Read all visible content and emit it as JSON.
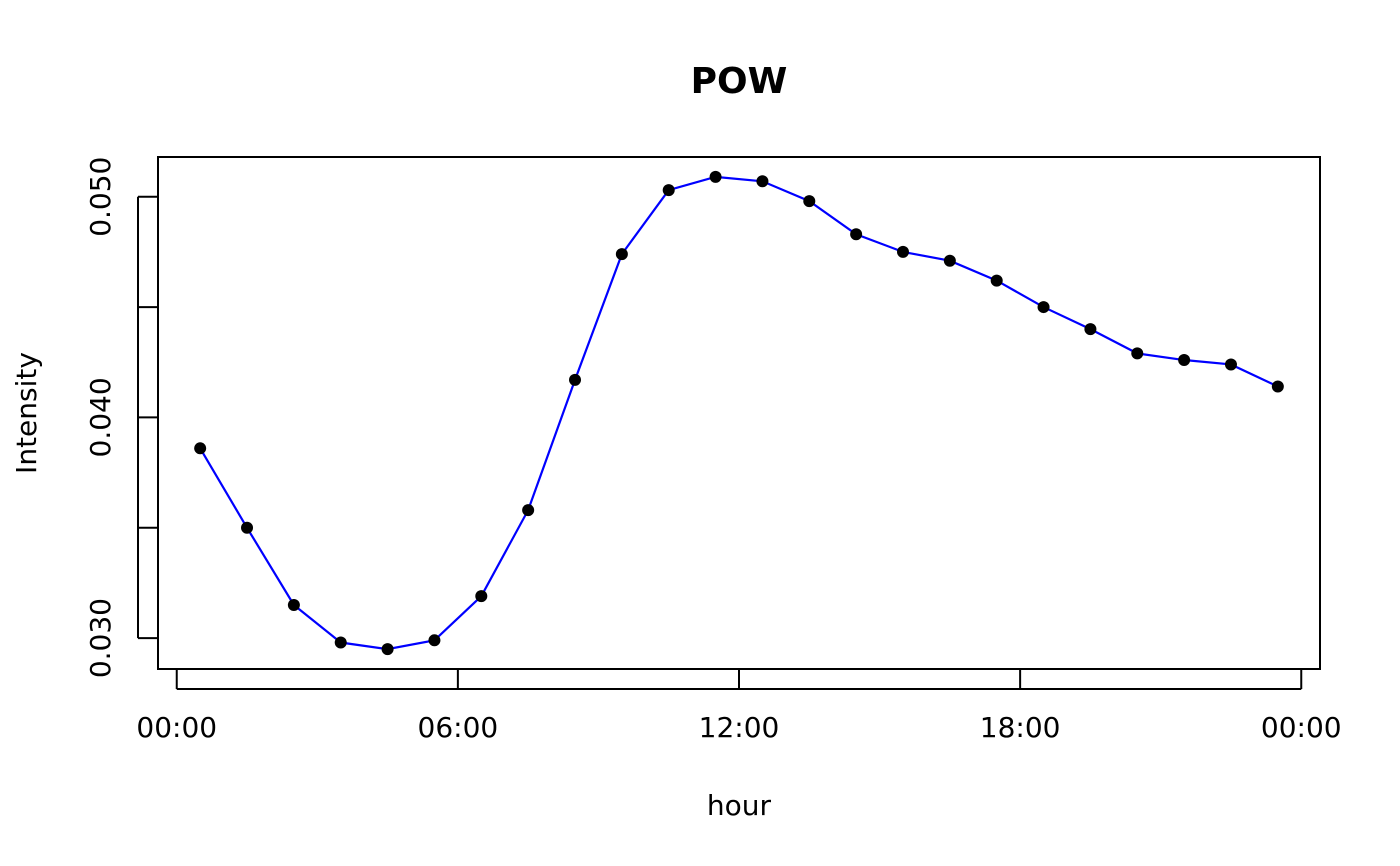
{
  "chart_data": {
    "type": "line",
    "title": "POW",
    "xlabel": "hour",
    "ylabel": "Intensity",
    "x_unit": "hour of day",
    "xlim": [
      -0.4,
      24.4
    ],
    "ylim": [
      0.0286,
      0.0518
    ],
    "x_ticks": [
      {
        "value": 0,
        "label": "00:00"
      },
      {
        "value": 6,
        "label": "06:00"
      },
      {
        "value": 12,
        "label": "12:00"
      },
      {
        "value": 18,
        "label": "18:00"
      },
      {
        "value": 24,
        "label": "00:00"
      }
    ],
    "y_ticks": [
      {
        "value": 0.03,
        "label": "0.030"
      },
      {
        "value": 0.035,
        "label": ""
      },
      {
        "value": 0.04,
        "label": "0.040"
      },
      {
        "value": 0.045,
        "label": ""
      },
      {
        "value": 0.05,
        "label": "0.050"
      }
    ],
    "grid": false,
    "legend": "none",
    "series": [
      {
        "color": "#0000ff",
        "marker_color": "#000000",
        "x": [
          0.5,
          1.5,
          2.5,
          3.5,
          4.5,
          5.5,
          6.5,
          7.5,
          8.5,
          9.5,
          10.5,
          11.5,
          12.5,
          13.5,
          14.5,
          15.5,
          16.5,
          17.5,
          18.5,
          19.5,
          20.5,
          21.5,
          22.5,
          23.5
        ],
        "values": [
          0.0386,
          0.035,
          0.0315,
          0.0298,
          0.0295,
          0.0299,
          0.0319,
          0.0358,
          0.0417,
          0.0474,
          0.0503,
          0.0509,
          0.0507,
          0.0498,
          0.0483,
          0.0475,
          0.0471,
          0.0462,
          0.045,
          0.044,
          0.0429,
          0.0426,
          0.0424,
          0.0414
        ]
      }
    ]
  }
}
